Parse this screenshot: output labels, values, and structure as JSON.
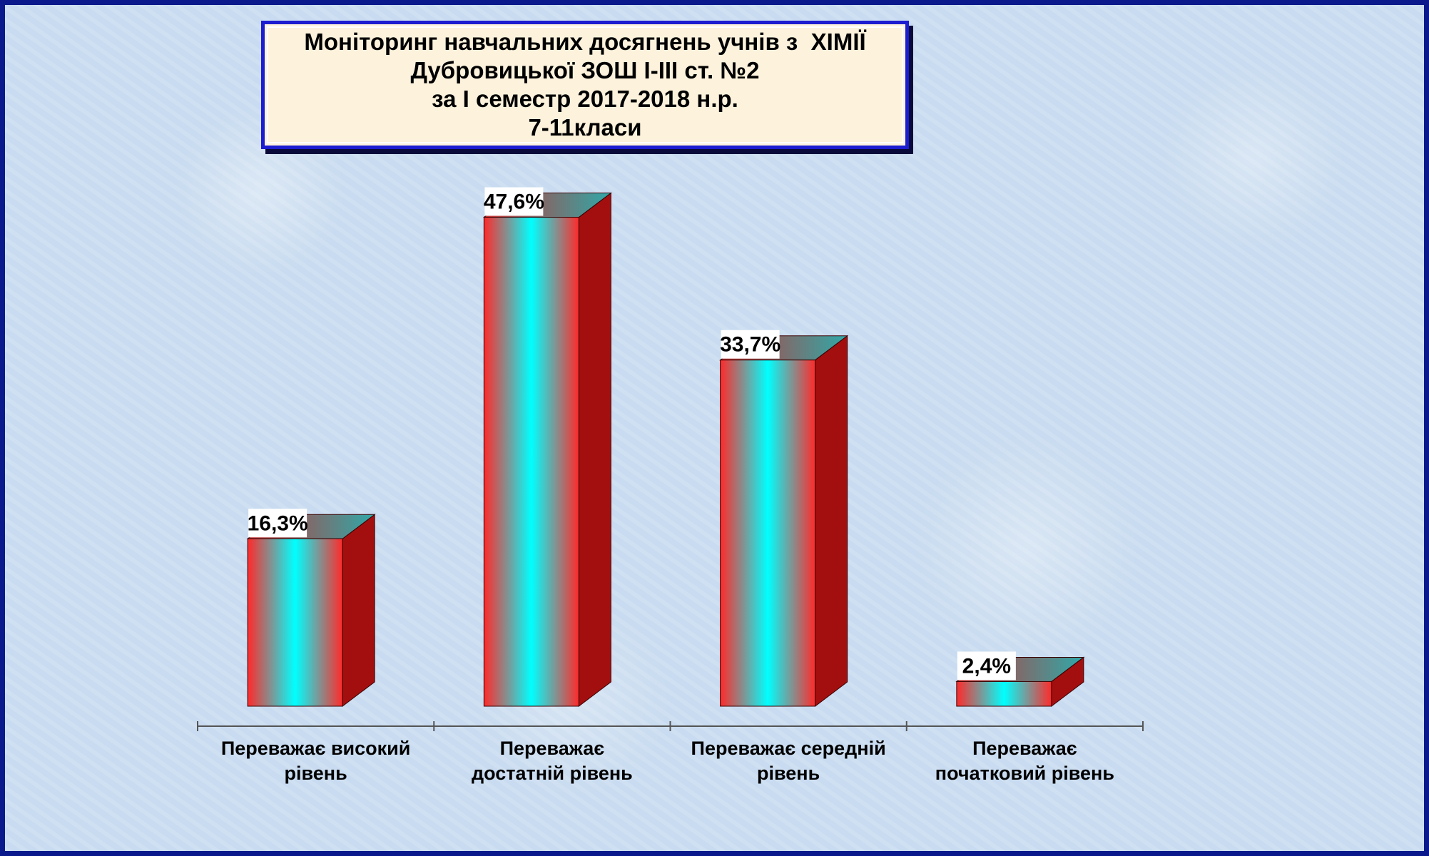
{
  "chart_data": {
    "type": "bar",
    "title": [
      "Моніторинг навчальних досягнень учнів з  ХІМІЇ",
      "Дубровицької ЗОШ І-ІІІ ст. №2",
      "за І семестр 2017-2018 н.р.",
      "7-11класи"
    ],
    "categories": [
      [
        "Переважає високий",
        "рівень"
      ],
      [
        "Переважає",
        "достатній рівень"
      ],
      [
        "Переважає середній",
        "рівень"
      ],
      [
        "Переважає",
        "початковий рівень"
      ]
    ],
    "values": [
      16.3,
      47.6,
      33.7,
      2.4
    ],
    "data_labels": [
      "16,3%",
      "47,6%",
      "33,7%",
      "2,4%"
    ],
    "unit": "%",
    "xlabel": "",
    "ylabel": "",
    "ylim": [
      0,
      50
    ],
    "grid": false,
    "legend": "none",
    "colors": {
      "bar_edge": "#ff2a2a",
      "bar_center": "#00ffff",
      "bar_side": "#a30f0f",
      "bar_top_left": "#c83232",
      "bar_top_right": "#2fa9a9",
      "title_border": "#1c1cd0",
      "title_background": "#fdf2dc",
      "page_border": "#0a1a8c",
      "background": "#c9dcf0"
    }
  }
}
